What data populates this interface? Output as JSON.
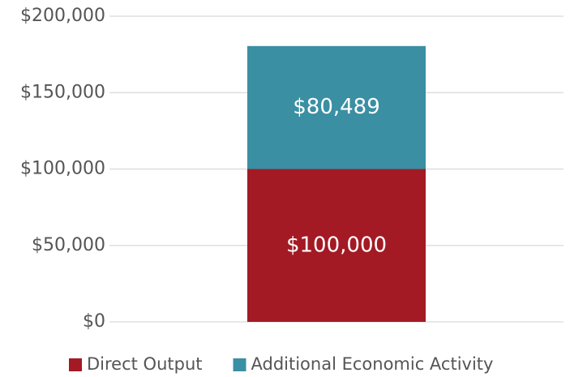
{
  "chart_data": {
    "type": "stacked_bar",
    "categories": [
      null
    ],
    "series": [
      {
        "name": "Direct Output",
        "color": "#a31a24",
        "values": [
          100000
        ],
        "value_labels": [
          "$100,000"
        ]
      },
      {
        "name": "Additional Economic Activity",
        "color": "#3a8fa3",
        "values": [
          80489
        ],
        "value_labels": [
          "$80,489"
        ]
      }
    ],
    "ylim": [
      0,
      200000
    ],
    "yticks": [
      {
        "value": 0,
        "label": "$0"
      },
      {
        "value": 50000,
        "label": "$50,000"
      },
      {
        "value": 100000,
        "label": "$100,000"
      },
      {
        "value": 150000,
        "label": "$150,000"
      },
      {
        "value": 200000,
        "label": "$200,000"
      }
    ],
    "grid": true,
    "legend": "bottom"
  }
}
